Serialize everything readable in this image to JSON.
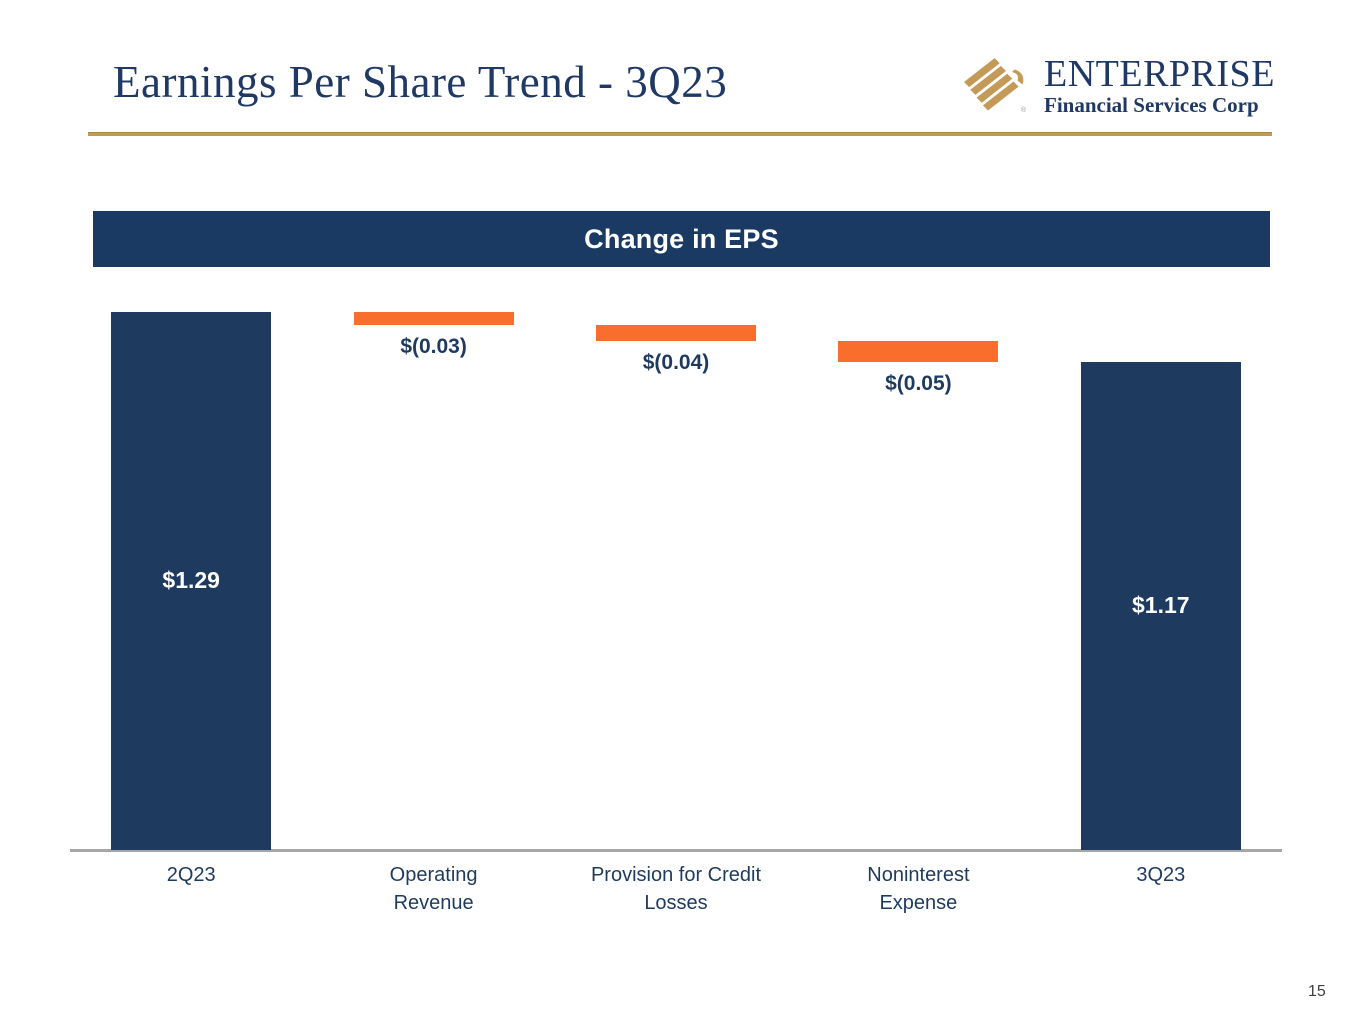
{
  "slide": {
    "title": "Earnings Per Share Trend - 3Q23",
    "page_number": "15"
  },
  "logo": {
    "name": "ENTERPRISE",
    "subtitle": "Financial Services Corp",
    "icon": "gold-diagonal-stripes-mark",
    "colors": {
      "gold": "#C49A58",
      "navy": "#1F3864"
    }
  },
  "banner": {
    "title": "Change in EPS",
    "background": "#1B3A63",
    "text_color": "#FFFFFF"
  },
  "rules": {
    "title_underline_color": "#BF9B51"
  },
  "chart_data": {
    "type": "bar",
    "subtype": "waterfall",
    "title": "Change in EPS",
    "categories": [
      "2Q23",
      "Operating Revenue",
      "Provision for Credit Losses",
      "Noninterest Expense",
      "3Q23"
    ],
    "steps": [
      {
        "label": "2Q23",
        "axis_label_lines": [
          "2Q23"
        ],
        "kind": "total",
        "value": 1.29,
        "value_label": "$1.29"
      },
      {
        "label": "Operating Revenue",
        "axis_label_lines": [
          "Operating",
          "Revenue"
        ],
        "kind": "decrease",
        "value": -0.03,
        "value_label": "$(0.03)"
      },
      {
        "label": "Provision for Credit Losses",
        "axis_label_lines": [
          "Provision for Credit",
          "Losses"
        ],
        "kind": "decrease",
        "value": -0.04,
        "value_label": "$(0.04)"
      },
      {
        "label": "Noninterest Expense",
        "axis_label_lines": [
          "Noninterest",
          "Expense"
        ],
        "kind": "decrease",
        "value": -0.05,
        "value_label": "$(0.05)"
      },
      {
        "label": "3Q23",
        "axis_label_lines": [
          "3Q23"
        ],
        "kind": "total",
        "value": 1.17,
        "value_label": "$1.17"
      }
    ],
    "ylim": [
      0,
      1.29
    ],
    "grid": false,
    "legend": "none",
    "colors": {
      "total_bar": "#1F3A5F",
      "decrease_bar": "#F96E2C",
      "axis_line": "#A6A6A6",
      "axis_text": "#1F3A5F",
      "inside_label": "#FFFFFF",
      "below_label": "#1F3A5F"
    }
  }
}
